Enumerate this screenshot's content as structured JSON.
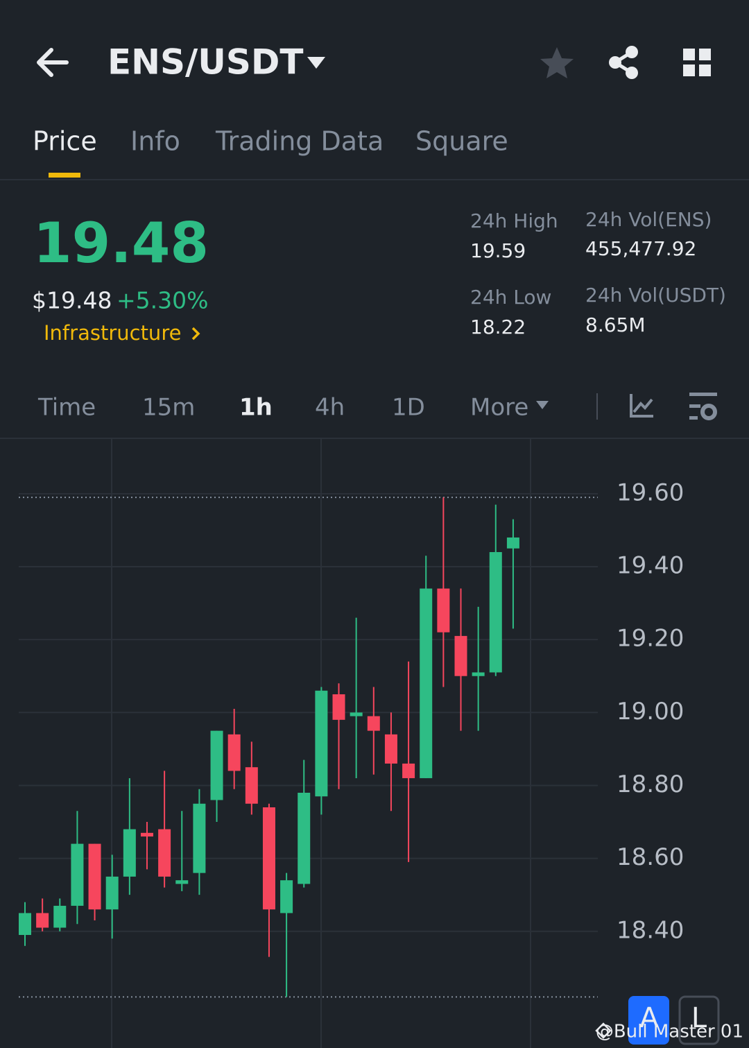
{
  "header": {
    "title": "ENS/USDT"
  },
  "tabs": [
    "Price",
    "Info",
    "Trading Data",
    "Square"
  ],
  "price": {
    "last": "19.48",
    "usd": "$19.48",
    "change": "+5.30%",
    "sector": "Infrastructure"
  },
  "stats": [
    {
      "label": "24h High",
      "value": "19.59"
    },
    {
      "label": "24h Vol(ENS)",
      "value": "455,477.92"
    },
    {
      "label": "24h Low",
      "value": "18.22"
    },
    {
      "label": "24h Vol(USDT)",
      "value": "8.65M"
    }
  ],
  "intervals": [
    "Time",
    "15m",
    "1h",
    "4h",
    "1D",
    "More"
  ],
  "chart_data": {
    "type": "candlestick",
    "open": [
      18.39,
      18.45,
      18.41,
      18.47,
      18.64,
      18.46,
      18.55,
      18.67,
      18.68,
      18.53,
      18.56,
      18.76,
      18.94,
      18.85,
      18.74,
      18.45,
      18.53,
      18.77,
      19.05,
      18.99,
      18.99,
      18.94,
      18.86,
      18.82,
      19.34,
      19.21,
      19.1,
      19.11,
      19.45
    ],
    "high": [
      18.48,
      18.49,
      18.49,
      18.73,
      18.64,
      18.61,
      18.82,
      18.7,
      18.84,
      18.73,
      18.79,
      18.95,
      19.01,
      18.92,
      18.75,
      18.56,
      18.87,
      19.07,
      19.08,
      19.26,
      19.07,
      19.0,
      19.14,
      19.43,
      19.59,
      19.34,
      19.29,
      19.57,
      19.53
    ],
    "low": [
      18.36,
      18.4,
      18.4,
      18.42,
      18.43,
      18.38,
      18.5,
      18.57,
      18.52,
      18.51,
      18.5,
      18.7,
      18.79,
      18.72,
      18.33,
      18.22,
      18.52,
      18.72,
      18.79,
      18.82,
      18.83,
      18.73,
      18.59,
      18.82,
      19.07,
      18.95,
      18.95,
      19.1,
      19.23
    ],
    "close": [
      18.45,
      18.41,
      18.47,
      18.64,
      18.46,
      18.55,
      18.68,
      18.66,
      18.55,
      18.54,
      18.75,
      18.95,
      18.84,
      18.75,
      18.46,
      18.54,
      18.78,
      19.06,
      18.98,
      19.0,
      18.95,
      18.86,
      18.82,
      19.34,
      19.22,
      19.1,
      19.11,
      19.44,
      19.48
    ],
    "up_color": "#2ebd85",
    "down_color": "#f6465d",
    "ylim": [
      18.08,
      19.75
    ],
    "yticks": [
      {
        "value": 18.4,
        "label": "18.40"
      },
      {
        "value": 18.6,
        "label": "18.60"
      },
      {
        "value": 18.8,
        "label": "18.80"
      },
      {
        "value": 19.0,
        "label": "19.00"
      },
      {
        "value": 19.2,
        "label": "19.20"
      },
      {
        "value": 19.4,
        "label": "19.40"
      },
      {
        "value": 19.6,
        "label": "19.60"
      }
    ],
    "grid": true
  },
  "buttons": [
    "A",
    "L"
  ],
  "watermark": "@Bull Master 01"
}
